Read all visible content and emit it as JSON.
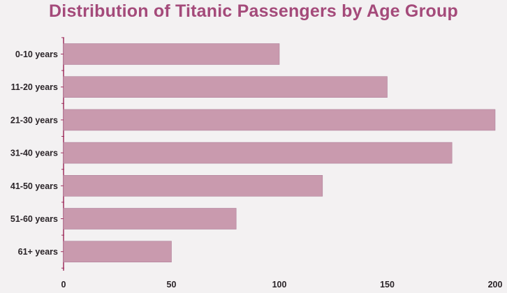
{
  "chart_data": {
    "type": "bar",
    "orientation": "horizontal",
    "title": "Distribution of Titanic Passengers by Age Group",
    "categories": [
      "0-10 years",
      "11-20 years",
      "21-30 years",
      "31-40 years",
      "41-50 years",
      "51-60 years",
      "61+ years"
    ],
    "values": [
      100,
      150,
      200,
      180,
      120,
      80,
      50
    ],
    "xlabel": "",
    "ylabel": "",
    "xlim": [
      0,
      200
    ],
    "x_ticks": [
      "0",
      "50",
      "100",
      "150",
      "200"
    ],
    "grid": false,
    "legend": "none",
    "colors": {
      "bar": "#c99aae",
      "bar_stroke": "#b0809a",
      "title": "#a44a7a",
      "axis": "#a0305e",
      "text": "#2a2428"
    }
  }
}
